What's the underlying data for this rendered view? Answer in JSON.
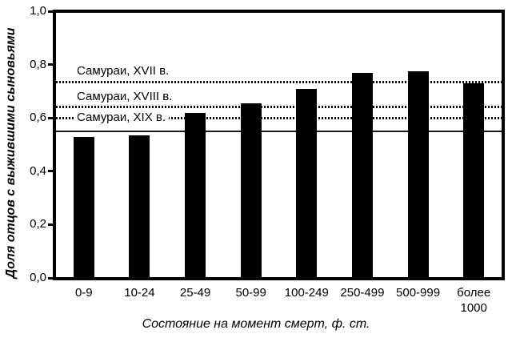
{
  "chart_data": {
    "type": "bar",
    "title": "",
    "xlabel": "Состояние на момент смерт, ф. ст.",
    "ylabel": "Доля отцов с выжившими сыновьями",
    "categories": [
      "0-9",
      "10-24",
      "25-49",
      "50-99",
      "100-249",
      "250-499",
      "500-999",
      "более\n1000"
    ],
    "values": [
      0.53,
      0.535,
      0.62,
      0.655,
      0.71,
      0.77,
      0.775,
      0.73
    ],
    "bar_color": "#000000",
    "ylim": [
      0.0,
      1.0
    ],
    "grid": false,
    "legend": false,
    "yticks": [
      {
        "value": 0.0,
        "label": "0,0"
      },
      {
        "value": 0.2,
        "label": "0,2"
      },
      {
        "value": 0.4,
        "label": "0,4"
      },
      {
        "value": 0.6,
        "label": "0,6"
      },
      {
        "value": 0.8,
        "label": "0,8"
      },
      {
        "value": 1.0,
        "label": "1,0"
      }
    ],
    "reference_lines": [
      {
        "label": "Самураи, XVII в.",
        "value": 0.735,
        "style": "dotted",
        "label_placement": "above"
      },
      {
        "label": "Самураи, XVIII в.",
        "value": 0.64,
        "style": "dotted",
        "label_placement": "above"
      },
      {
        "label": "Самураи, XIX в.",
        "value": 0.6,
        "style": "dotted",
        "label_placement": "on"
      },
      {
        "label": "",
        "value": 0.55,
        "style": "solid",
        "label_placement": "none"
      }
    ]
  }
}
